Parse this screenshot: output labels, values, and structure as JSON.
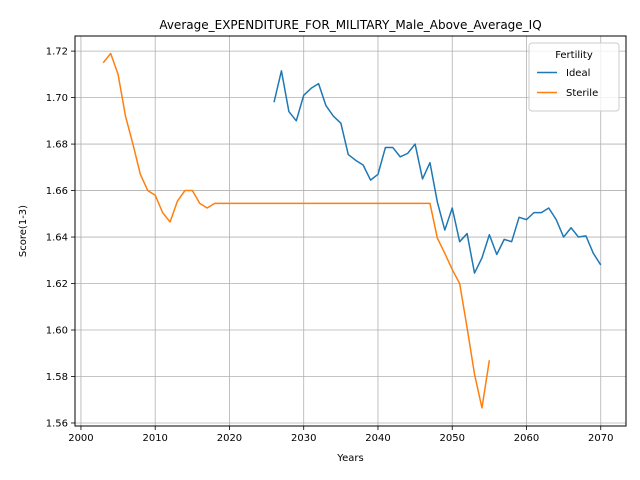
{
  "chart_data": {
    "type": "line",
    "title": "Average_EXPENDITURE_FOR_MILITARY_Male_Above_Average_IQ",
    "xlabel": "Years",
    "ylabel": "Score(1-3)",
    "xlim": [
      1999.2,
      2073.4
    ],
    "ylim": [
      1.5587,
      1.7265
    ],
    "xticks": [
      2000,
      2010,
      2020,
      2030,
      2040,
      2050,
      2060,
      2070
    ],
    "yticks": [
      1.56,
      1.58,
      1.6,
      1.62,
      1.64,
      1.66,
      1.68,
      1.7,
      1.72
    ],
    "ytick_labels": [
      "1.56",
      "1.58",
      "1.60",
      "1.62",
      "1.64",
      "1.66",
      "1.68",
      "1.70",
      "1.72"
    ],
    "grid": true,
    "legend": {
      "title": "Fertility",
      "position": "top-right"
    },
    "series": [
      {
        "name": "Ideal",
        "color": "#1f77b4",
        "x": [
          2026,
          2027,
          2028,
          2029,
          2030,
          2031,
          2032,
          2033,
          2034,
          2035,
          2036,
          2037,
          2038,
          2039,
          2040,
          2041,
          2042,
          2043,
          2044,
          2045,
          2046,
          2047,
          2048,
          2049,
          2050,
          2051,
          2052,
          2053,
          2054,
          2055,
          2056,
          2057,
          2058,
          2059,
          2060,
          2061,
          2062,
          2063,
          2064,
          2065,
          2066,
          2067,
          2068,
          2069,
          2070
        ],
        "y": [
          1.698,
          1.7115,
          1.694,
          1.69,
          1.701,
          1.704,
          1.706,
          1.6965,
          1.692,
          1.689,
          1.6755,
          1.673,
          1.671,
          1.6645,
          1.667,
          1.6785,
          1.6785,
          1.6745,
          1.676,
          1.68,
          1.665,
          1.672,
          1.655,
          1.643,
          1.6525,
          1.638,
          1.6415,
          1.6245,
          1.631,
          1.641,
          1.6325,
          1.639,
          1.638,
          1.6485,
          1.6475,
          1.6505,
          1.6505,
          1.6525,
          1.6475,
          1.64,
          1.644,
          1.64,
          1.6405,
          1.633,
          1.628
        ]
      },
      {
        "name": "Sterile",
        "color": "#ff7f0e",
        "x": [
          2003,
          2004,
          2005,
          2006,
          2007,
          2008,
          2009,
          2010,
          2011,
          2012,
          2013,
          2014,
          2015,
          2016,
          2017,
          2018,
          2019,
          2020,
          2021,
          2022,
          2023,
          2024,
          2025,
          2026,
          2027,
          2028,
          2029,
          2030,
          2031,
          2032,
          2033,
          2034,
          2035,
          2036,
          2037,
          2038,
          2039,
          2040,
          2041,
          2042,
          2043,
          2044,
          2045,
          2046,
          2047,
          2048,
          2049,
          2050,
          2051,
          2052,
          2053,
          2054,
          2055
        ],
        "y": [
          1.715,
          1.719,
          1.71,
          1.692,
          1.68,
          1.667,
          1.66,
          1.658,
          1.6505,
          1.6465,
          1.6555,
          1.66,
          1.66,
          1.6545,
          1.6525,
          1.6545,
          1.6545,
          1.6545,
          1.6545,
          1.6545,
          1.6545,
          1.6545,
          1.6545,
          1.6545,
          1.6545,
          1.6545,
          1.6545,
          1.6545,
          1.6545,
          1.6545,
          1.6545,
          1.6545,
          1.6545,
          1.6545,
          1.6545,
          1.6545,
          1.6545,
          1.6545,
          1.6545,
          1.6545,
          1.6545,
          1.6545,
          1.6545,
          1.6545,
          1.6545,
          1.6395,
          1.633,
          1.626,
          1.62,
          1.601,
          1.581,
          1.5665,
          1.587
        ]
      }
    ]
  }
}
